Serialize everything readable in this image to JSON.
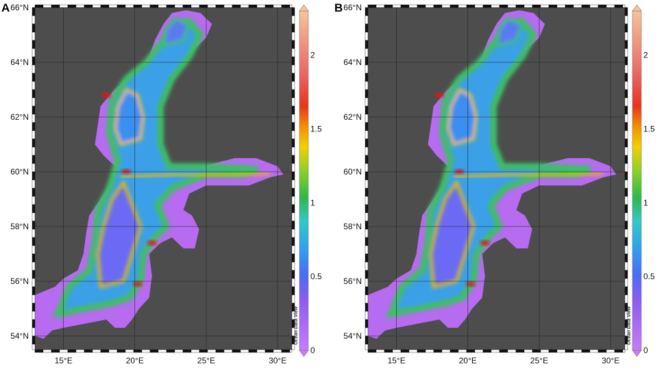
{
  "panels": [
    {
      "id": "a",
      "letter": "A",
      "lat_ticks": [
        "66°N",
        "64°N",
        "62°N",
        "60°N",
        "58°N",
        "56°N",
        "54°N"
      ],
      "lon_ticks": [
        "15°E",
        "20°E",
        "25°E",
        "30°E"
      ],
      "colorbar_ticks": [
        "0",
        "0.5",
        "1",
        "1.5",
        "2"
      ],
      "watermark": "Ocean Data View"
    },
    {
      "id": "b",
      "letter": "B",
      "lat_ticks": [
        "66°N",
        "64°N",
        "62°N",
        "60°N",
        "58°N",
        "56°N",
        "54°N"
      ],
      "lon_ticks": [
        "15°E",
        "20°E",
        "25°E",
        "30°E"
      ],
      "colorbar_ticks": [
        "0",
        "0.5",
        "1",
        "1.5",
        "2"
      ],
      "watermark": "Ocean Data View"
    }
  ],
  "colors": {
    "land": "#4d4d4d",
    "sea_low": "#b66bf0",
    "sea_mid": "#3cc060",
    "sea_high": "#f0c000",
    "sea_peak": "#d81c1c"
  },
  "map_extent": {
    "lon": [
      13,
      31
    ],
    "lat": [
      53.5,
      66
    ]
  },
  "colorbar_range": [
    0,
    2.3
  ]
}
